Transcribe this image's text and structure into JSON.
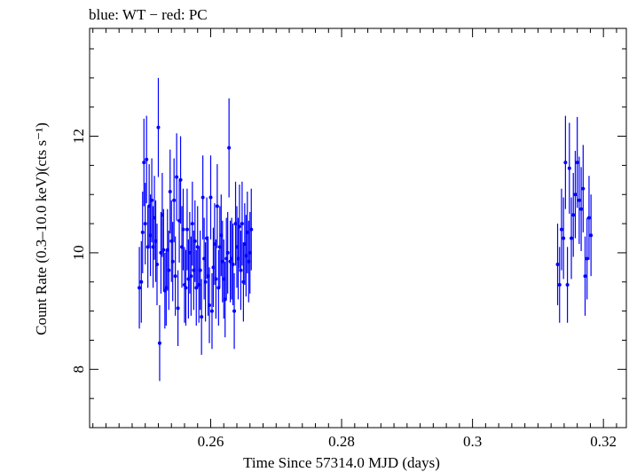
{
  "chart_data": {
    "type": "scatter",
    "title": "blue: WT − red: PC",
    "xlabel": "Time Since 57314.0 MJD (days)",
    "ylabel": "Count Rate (0.3–10.0 keV)(cts s⁻¹)",
    "xlim": [
      0.2415,
      0.3235
    ],
    "ylim": [
      7.0,
      13.85
    ],
    "x_ticks": [
      0.26,
      0.28,
      0.3,
      0.32
    ],
    "x_tick_labels": [
      "0.26",
      "0.28",
      "0.3",
      "0.32"
    ],
    "y_ticks": [
      8,
      10,
      12
    ],
    "y_tick_labels": [
      "8",
      "10",
      "12"
    ],
    "grid": false,
    "series": [
      {
        "name": "WT",
        "color": "#0000ff",
        "x": [
          0.2491,
          0.2494,
          0.2496,
          0.2498,
          0.25,
          0.2502,
          0.2504,
          0.2506,
          0.2508,
          0.251,
          0.2512,
          0.2514,
          0.2516,
          0.2518,
          0.252,
          0.2522,
          0.2524,
          0.2526,
          0.2528,
          0.253,
          0.2532,
          0.2534,
          0.2536,
          0.2538,
          0.254,
          0.2542,
          0.2544,
          0.2546,
          0.2548,
          0.255,
          0.2552,
          0.2554,
          0.2556,
          0.2558,
          0.256,
          0.2562,
          0.2564,
          0.2566,
          0.2568,
          0.257,
          0.2572,
          0.2574,
          0.2576,
          0.2578,
          0.258,
          0.2582,
          0.2584,
          0.2586,
          0.2588,
          0.259,
          0.2592,
          0.2594,
          0.2596,
          0.2598,
          0.26,
          0.2602,
          0.2604,
          0.2606,
          0.2608,
          0.261,
          0.2612,
          0.2614,
          0.2616,
          0.2618,
          0.262,
          0.2622,
          0.2624,
          0.2626,
          0.2628,
          0.263,
          0.2632,
          0.2634,
          0.2636,
          0.2638,
          0.264,
          0.2642,
          0.2644,
          0.2646,
          0.2648,
          0.265,
          0.2652,
          0.2654,
          0.2656,
          0.2658,
          0.266,
          0.2662,
          0.313,
          0.3133,
          0.3136,
          0.3139,
          0.3142,
          0.3145,
          0.3148,
          0.3151,
          0.3154,
          0.3157,
          0.316,
          0.3163,
          0.3166,
          0.3169,
          0.3172,
          0.3175,
          0.3178,
          0.3181
        ],
        "y": [
          9.4,
          9.5,
          10.35,
          11.55,
          10.5,
          11.6,
          10.1,
          10.8,
          10.3,
          10.9,
          10.1,
          10.6,
          10.2,
          9.8,
          12.15,
          8.45,
          10.0,
          10.65,
          10.05,
          9.35,
          9.4,
          10.05,
          9.7,
          11.05,
          10.2,
          9.85,
          10.9,
          9.6,
          11.3,
          9.05,
          10.55,
          11.25,
          10.1,
          10.4,
          9.45,
          9.4,
          10.4,
          9.55,
          10.0,
          9.6,
          10.5,
          9.7,
          10.2,
          9.4,
          10.1,
          9.45,
          9.7,
          8.9,
          10.95,
          9.9,
          9.5,
          10.25,
          9.6,
          9.1,
          10.95,
          9.0,
          9.75,
          10.15,
          9.55,
          10.8,
          9.4,
          10.1,
          10.3,
          9.85,
          9.55,
          9.2,
          9.9,
          10.0,
          11.8,
          9.85,
          9.9,
          9.8,
          9.0,
          10.5,
          10.1,
          9.9,
          10.45,
          9.7,
          10.5,
          9.5,
          10.15,
          9.95,
          10.35,
          9.85,
          10.0,
          10.4,
          9.8,
          9.45,
          10.4,
          10.25,
          11.55,
          9.45,
          11.45,
          10.25,
          10.65,
          11.0,
          11.55,
          10.9,
          10.75,
          11.1,
          9.6,
          9.9,
          10.6,
          10.3
        ],
        "y_err": [
          0.7,
          0.7,
          0.7,
          0.75,
          0.7,
          0.75,
          0.7,
          0.72,
          0.7,
          0.72,
          0.7,
          0.72,
          0.7,
          0.7,
          0.85,
          0.65,
          0.7,
          0.72,
          0.7,
          0.65,
          0.65,
          0.7,
          0.68,
          0.72,
          0.7,
          0.68,
          0.72,
          0.68,
          0.75,
          0.65,
          0.72,
          0.75,
          0.7,
          0.7,
          0.65,
          0.65,
          0.7,
          0.68,
          0.7,
          0.68,
          0.72,
          0.68,
          0.7,
          0.65,
          0.7,
          0.65,
          0.68,
          0.65,
          0.72,
          0.7,
          0.68,
          0.7,
          0.68,
          0.65,
          0.72,
          0.65,
          0.68,
          0.7,
          0.68,
          0.72,
          0.65,
          0.7,
          0.7,
          0.7,
          0.68,
          0.65,
          0.7,
          0.7,
          0.85,
          0.7,
          0.7,
          0.7,
          0.65,
          0.72,
          0.7,
          0.7,
          0.72,
          0.68,
          0.72,
          0.68,
          0.7,
          0.7,
          0.7,
          0.7,
          0.7,
          0.7,
          0.7,
          0.65,
          0.7,
          0.7,
          0.8,
          0.65,
          0.78,
          0.7,
          0.72,
          0.75,
          0.78,
          0.75,
          0.72,
          0.75,
          0.68,
          0.7,
          0.72,
          0.7
        ]
      }
    ]
  }
}
